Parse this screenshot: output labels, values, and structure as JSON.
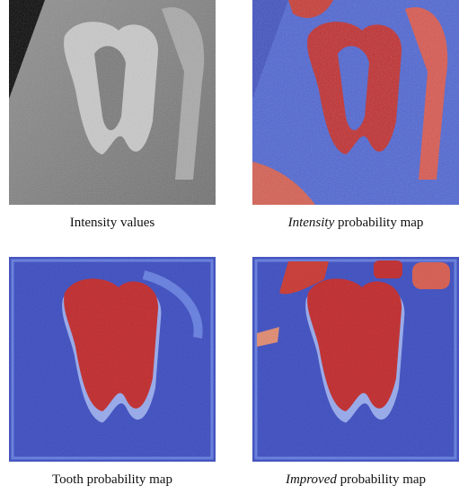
{
  "panels": [
    {
      "caption_emphasis": null,
      "caption": "Intensity values"
    },
    {
      "caption_emphasis": "Intensity",
      "caption": "probability map"
    },
    {
      "caption_emphasis": null,
      "caption": "Tooth probability map"
    },
    {
      "caption_emphasis": "Improved",
      "caption": "probability map"
    }
  ]
}
